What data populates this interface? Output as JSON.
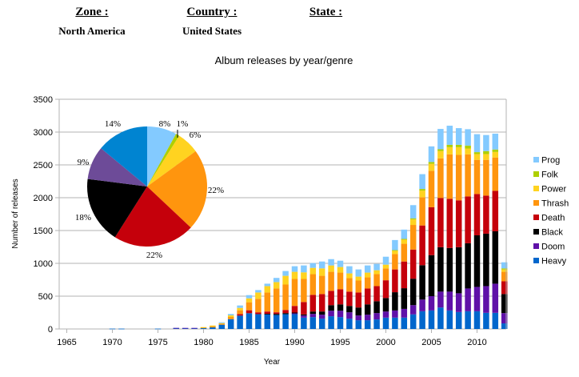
{
  "header": {
    "zone_label": "Zone :",
    "zone_value": "North America",
    "country_label": "Country :",
    "country_value": "United States",
    "state_label": "State :",
    "state_value": ""
  },
  "chart_data": [
    {
      "type": "bar",
      "stacked": true,
      "title": "Album releases by year/genre",
      "xlabel": "Year",
      "ylabel": "Number of releases",
      "ylim": [
        0,
        3500
      ],
      "yticks": [
        0,
        500,
        1000,
        1500,
        2000,
        2500,
        3000,
        3500
      ],
      "xlim": [
        1965,
        2013
      ],
      "xticks": [
        1965,
        1970,
        1975,
        1980,
        1985,
        1990,
        1995,
        2000,
        2005,
        2010
      ],
      "grid": true,
      "legend_position": "right",
      "x": [
        1965,
        1966,
        1967,
        1968,
        1969,
        1970,
        1971,
        1972,
        1973,
        1974,
        1975,
        1976,
        1977,
        1978,
        1979,
        1980,
        1981,
        1982,
        1983,
        1984,
        1985,
        1986,
        1987,
        1988,
        1989,
        1990,
        1991,
        1992,
        1993,
        1994,
        1995,
        1996,
        1997,
        1998,
        1999,
        2000,
        2001,
        2002,
        2003,
        2004,
        2005,
        2006,
        2007,
        2008,
        2009,
        2010,
        2011,
        2012,
        2013
      ],
      "series": [
        {
          "name": "Heavy",
          "color": "#0066cc",
          "values": [
            0,
            0,
            0,
            0,
            0,
            5,
            5,
            0,
            0,
            0,
            5,
            0,
            14,
            12,
            10,
            12,
            24,
            65,
            150,
            203,
            240,
            226,
            226,
            214,
            226,
            226,
            173,
            181,
            157,
            194,
            181,
            157,
            133,
            133,
            145,
            173,
            173,
            173,
            222,
            270,
            282,
            327,
            282,
            258,
            270,
            270,
            246,
            246,
            85
          ]
        },
        {
          "name": "Doom",
          "color": "#5f11a8",
          "values": [
            0,
            0,
            0,
            0,
            0,
            0,
            0,
            0,
            0,
            0,
            0,
            0,
            2,
            4,
            6,
            0,
            0,
            0,
            0,
            0,
            0,
            0,
            0,
            0,
            0,
            12,
            33,
            49,
            61,
            84,
            97,
            97,
            73,
            85,
            97,
            93,
            109,
            133,
            141,
            178,
            218,
            242,
            287,
            286,
            347,
            371,
            407,
            444,
            157
          ]
        },
        {
          "name": "Black",
          "color": "#000000",
          "values": [
            0,
            0,
            0,
            0,
            0,
            0,
            0,
            0,
            0,
            0,
            0,
            0,
            0,
            0,
            0,
            0,
            0,
            0,
            0,
            0,
            0,
            0,
            5,
            16,
            16,
            12,
            16,
            36,
            48,
            85,
            97,
            97,
            121,
            157,
            181,
            206,
            278,
            315,
            403,
            524,
            625,
            677,
            665,
            702,
            689,
            786,
            799,
            798,
            290
          ]
        },
        {
          "name": "Death",
          "color": "#c5000b",
          "values": [
            0,
            0,
            0,
            0,
            0,
            0,
            0,
            0,
            0,
            0,
            0,
            0,
            0,
            0,
            0,
            0,
            0,
            0,
            0,
            25,
            45,
            28,
            35,
            24,
            48,
            101,
            189,
            254,
            266,
            218,
            230,
            218,
            229,
            242,
            230,
            270,
            347,
            407,
            444,
            605,
            730,
            750,
            750,
            714,
            714,
            629,
            580,
            617,
            194
          ]
        },
        {
          "name": "Thrash",
          "color": "#ff950e",
          "values": [
            0,
            0,
            0,
            0,
            0,
            0,
            0,
            0,
            0,
            0,
            0,
            0,
            0,
            0,
            0,
            10,
            17,
            16,
            33,
            57,
            122,
            206,
            290,
            363,
            387,
            411,
            351,
            315,
            278,
            290,
            254,
            205,
            182,
            169,
            182,
            181,
            234,
            270,
            375,
            431,
            556,
            604,
            677,
            693,
            641,
            521,
            545,
            508,
            145
          ]
        },
        {
          "name": "Power",
          "color": "#ffd320",
          "values": [
            0,
            0,
            0,
            0,
            0,
            0,
            0,
            0,
            0,
            0,
            0,
            0,
            0,
            0,
            0,
            6,
            12,
            8,
            24,
            36,
            60,
            96,
            97,
            97,
            133,
            109,
            101,
            96,
            113,
            97,
            85,
            73,
            60,
            73,
            60,
            57,
            53,
            69,
            84,
            101,
            105,
            110,
            109,
            117,
            89,
            88,
            88,
            84,
            36
          ]
        },
        {
          "name": "Folk",
          "color": "#aecf00",
          "values": [
            0,
            0,
            0,
            0,
            0,
            0,
            0,
            0,
            0,
            0,
            0,
            0,
            0,
            0,
            0,
            0,
            0,
            0,
            0,
            0,
            0,
            0,
            0,
            0,
            0,
            0,
            0,
            0,
            0,
            0,
            0,
            0,
            0,
            0,
            0,
            0,
            7,
            5,
            16,
            24,
            28,
            28,
            36,
            36,
            44,
            29,
            45,
            37,
            16
          ]
        },
        {
          "name": "Prog",
          "color": "#83caff",
          "values": [
            0,
            0,
            0,
            0,
            0,
            0,
            0,
            0,
            0,
            0,
            0,
            0,
            0,
            0,
            0,
            0,
            0,
            13,
            21,
            37,
            49,
            37,
            37,
            64,
            73,
            85,
            105,
            73,
            105,
            96,
            96,
            109,
            109,
            109,
            97,
            121,
            154,
            142,
            202,
            226,
            238,
            310,
            291,
            254,
            250,
            274,
            245,
            242,
            93
          ]
        }
      ],
      "legend": [
        "Prog",
        "Folk",
        "Power",
        "Thrash",
        "Death",
        "Black",
        "Doom",
        "Heavy"
      ]
    },
    {
      "type": "pie",
      "title": "",
      "start": "top, clockwise",
      "slices": [
        {
          "name": "Prog",
          "value": 8,
          "label": "8%",
          "color": "#83caff"
        },
        {
          "name": "Folk",
          "value": 1,
          "label": "1%",
          "color": "#aecf00"
        },
        {
          "name": "Power",
          "value": 6,
          "label": "6%",
          "color": "#ffd320"
        },
        {
          "name": "Thrash",
          "value": 22,
          "label": "22%",
          "color": "#ff950e"
        },
        {
          "name": "Death",
          "value": 22,
          "label": "22%",
          "color": "#c5000b"
        },
        {
          "name": "Black",
          "value": 18,
          "label": "18%",
          "color": "#000000"
        },
        {
          "name": "Doom",
          "value": 9,
          "label": "9%",
          "color": "#6d4b98"
        },
        {
          "name": "Heavy",
          "value": 14,
          "label": "14%",
          "color": "#0084d1"
        }
      ]
    }
  ]
}
